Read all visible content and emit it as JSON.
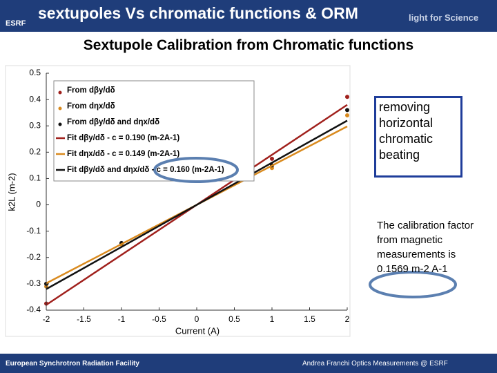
{
  "header": {
    "logo": "ESRF",
    "title": "sextupoles Vs chromatic functions & ORM",
    "tagline": "light for Science"
  },
  "subtitle": "Sextupole Calibration from Chromatic functions",
  "callout": "removing horizontal chromatic beating",
  "note": "The calibration factor from magnetic measurements is 0.1569 m-2 A-1",
  "footer": {
    "left": "European Synchrotron Radiation Facility",
    "right": "Andrea Franchi Optics Measurements @ ESRF"
  },
  "chart_data": {
    "type": "scatter",
    "xlabel": "Current (A)",
    "ylabel": "k2L (m-2)",
    "xlim": [
      -2,
      2
    ],
    "xticks": [
      -2,
      -1.5,
      -1,
      -0.5,
      0,
      0.5,
      1,
      1.5,
      2
    ],
    "ylim": [
      -0.4,
      0.5
    ],
    "yticks": [
      -0.4,
      -0.3,
      -0.2,
      -0.1,
      0,
      0.1,
      0.2,
      0.3,
      0.4,
      0.5
    ],
    "series": [
      {
        "name": "From dβy/dδ",
        "color": "#a0201c",
        "kind": "points",
        "x": [
          -2,
          -1,
          1,
          2
        ],
        "values": [
          -0.375,
          -0.15,
          0.175,
          0.41
        ]
      },
      {
        "name": "From dηx/dδ",
        "color": "#d98a1e",
        "kind": "points",
        "x": [
          -2,
          -1,
          1,
          2
        ],
        "values": [
          -0.31,
          -0.15,
          0.14,
          0.34
        ]
      },
      {
        "name": "From dβy/dδ and dηx/dδ",
        "color": "#111111",
        "kind": "points",
        "x": [
          -2,
          -1,
          1,
          2
        ],
        "values": [
          -0.3,
          -0.145,
          0.15,
          0.36
        ]
      },
      {
        "name": "Fit dβy/dδ - c = 0.190 (m-2A-1)",
        "color": "#a0201c",
        "kind": "line",
        "x": [
          -2,
          2
        ],
        "values": [
          -0.38,
          0.38
        ]
      },
      {
        "name": "Fit dηx/dδ - c = 0.149 (m-2A-1)",
        "color": "#d98a1e",
        "kind": "line",
        "x": [
          -2,
          2
        ],
        "values": [
          -0.298,
          0.298
        ]
      },
      {
        "name": "Fit dβy/dδ and dηx/dδ - c = 0.160 (m-2A-1)",
        "color": "#111111",
        "kind": "line",
        "x": [
          -2,
          2
        ],
        "values": [
          -0.32,
          0.32
        ]
      }
    ]
  }
}
